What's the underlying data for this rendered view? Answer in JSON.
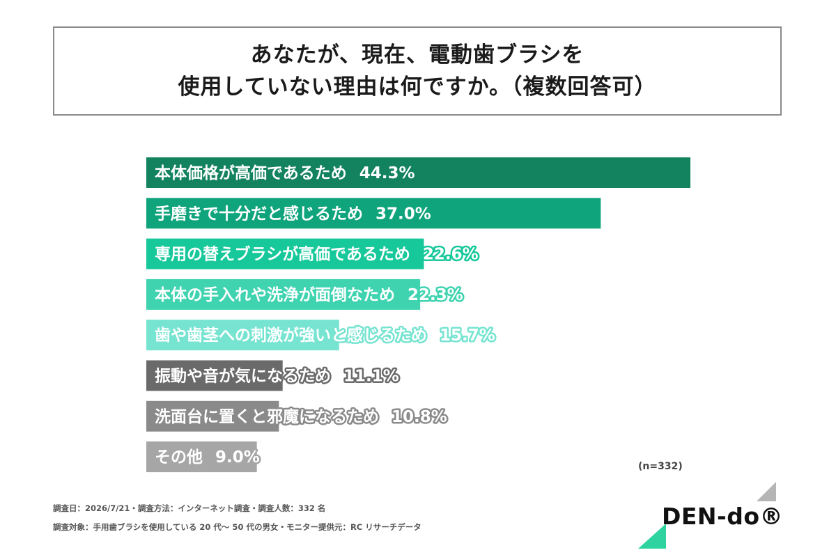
{
  "title": {
    "line1": "あなたが、現在、電動歯ブラシを",
    "line2": "使用していない理由は何ですか。（複数回答可）"
  },
  "chart_data": {
    "type": "bar",
    "orientation": "horizontal",
    "xlim": [
      0,
      44.3
    ],
    "categories": [
      "本体価格が高価であるため",
      "手磨きで十分だと感じるため",
      "専用の替えブラシが高価であるため",
      "本体の手入れや洗浄が面倒なため",
      "歯や歯茎への刺激が強いと感じるため",
      "振動や音が気になるため",
      "洗面台に置くと邪魔になるため",
      "その他"
    ],
    "values": [
      44.3,
      37.0,
      22.6,
      22.3,
      15.7,
      11.1,
      10.8,
      9.0
    ],
    "value_labels": [
      "44.3%",
      "37.0%",
      "22.6%",
      "22.3%",
      "15.7%",
      "11.1%",
      "10.8%",
      "9.0%"
    ],
    "colors": [
      "#13825f",
      "#0fa47c",
      "#16c89a",
      "#3fd3b0",
      "#76e4d1",
      "#6a6a6a",
      "#8a8a8a",
      "#a6a6a6"
    ],
    "grid": false,
    "legend": "none"
  },
  "n_label": "(n=332)",
  "footnotes": [
    "調査日：2026/7/21・調査方法：インターネット調査・調査人数：332 名",
    "調査対象：手用歯ブラシを使用している 20 代～ 50 代の男女・モニター提供元：RC リサーチデータ"
  ],
  "logo": {
    "text": "DEN-do®",
    "accent_color": "#2ed3a0",
    "shadow_color": "#b5b5b5"
  }
}
